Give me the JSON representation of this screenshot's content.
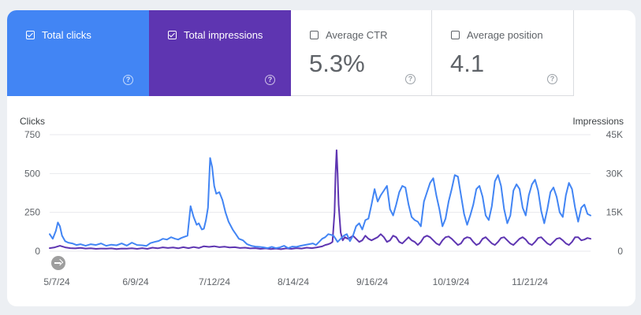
{
  "metrics": [
    {
      "label": "Total clicks",
      "checked": true,
      "color": "#4285f4",
      "value": "",
      "help_icon": "help-icon"
    },
    {
      "label": "Total impressions",
      "checked": true,
      "color": "#5e35b1",
      "value": "",
      "help_icon": "help-icon"
    },
    {
      "label": "Average CTR",
      "checked": false,
      "value": "5.3%",
      "help_icon": "help-icon"
    },
    {
      "label": "Average position",
      "checked": false,
      "value": "4.1",
      "help_icon": "help-icon"
    }
  ],
  "colors": {
    "clicks": "#4285f4",
    "impressions": "#5e35b1",
    "grid": "#e8eaed"
  },
  "chart_data": {
    "type": "line",
    "left_axis_label": "Clicks",
    "right_axis_label": "Impressions",
    "left_ticks": [
      "0",
      "250",
      "500",
      "750"
    ],
    "right_ticks": [
      "0",
      "15K",
      "30K",
      "45K"
    ],
    "ylim_left": [
      0,
      750
    ],
    "ylim_right": [
      0,
      45000
    ],
    "grid": true,
    "x_tick_labels": [
      "5/7/24",
      "6/9/24",
      "7/12/24",
      "8/14/24",
      "9/16/24",
      "10/19/24",
      "11/21/24"
    ],
    "series": [
      {
        "name": "Clicks",
        "axis": "left",
        "color": "#4285f4",
        "points": [
          [
            0,
            110
          ],
          [
            3,
            80
          ],
          [
            6,
            130
          ],
          [
            8,
            185
          ],
          [
            10,
            160
          ],
          [
            12,
            100
          ],
          [
            15,
            65
          ],
          [
            18,
            55
          ],
          [
            22,
            50
          ],
          [
            26,
            40
          ],
          [
            30,
            45
          ],
          [
            35,
            35
          ],
          [
            40,
            45
          ],
          [
            45,
            40
          ],
          [
            50,
            50
          ],
          [
            55,
            35
          ],
          [
            60,
            42
          ],
          [
            65,
            38
          ],
          [
            70,
            50
          ],
          [
            75,
            36
          ],
          [
            80,
            55
          ],
          [
            85,
            40
          ],
          [
            90,
            38
          ],
          [
            94,
            34
          ],
          [
            98,
            52
          ],
          [
            102,
            60
          ],
          [
            106,
            66
          ],
          [
            110,
            80
          ],
          [
            114,
            75
          ],
          [
            118,
            90
          ],
          [
            122,
            80
          ],
          [
            125,
            75
          ],
          [
            128,
            85
          ],
          [
            130,
            90
          ],
          [
            134,
            100
          ],
          [
            137,
            290
          ],
          [
            140,
            220
          ],
          [
            143,
            170
          ],
          [
            145,
            180
          ],
          [
            148,
            140
          ],
          [
            150,
            145
          ],
          [
            152,
            200
          ],
          [
            154,
            280
          ],
          [
            156,
            600
          ],
          [
            158,
            540
          ],
          [
            160,
            420
          ],
          [
            162,
            370
          ],
          [
            165,
            380
          ],
          [
            168,
            330
          ],
          [
            171,
            250
          ],
          [
            174,
            190
          ],
          [
            178,
            140
          ],
          [
            181,
            110
          ],
          [
            184,
            80
          ],
          [
            188,
            70
          ],
          [
            192,
            45
          ],
          [
            196,
            35
          ],
          [
            200,
            30
          ],
          [
            204,
            28
          ],
          [
            208,
            25
          ],
          [
            212,
            20
          ],
          [
            216,
            28
          ],
          [
            220,
            20
          ],
          [
            224,
            25
          ],
          [
            228,
            35
          ],
          [
            232,
            20
          ],
          [
            236,
            30
          ],
          [
            240,
            28
          ],
          [
            244,
            35
          ],
          [
            248,
            40
          ],
          [
            252,
            45
          ],
          [
            256,
            50
          ],
          [
            259,
            40
          ],
          [
            262,
            60
          ],
          [
            265,
            80
          ],
          [
            268,
            90
          ],
          [
            271,
            110
          ],
          [
            274,
            105
          ],
          [
            276,
            100
          ],
          [
            278,
            80
          ],
          [
            280,
            60
          ],
          [
            283,
            80
          ],
          [
            286,
            100
          ],
          [
            289,
            110
          ],
          [
            292,
            65
          ],
          [
            295,
            100
          ],
          [
            298,
            160
          ],
          [
            301,
            180
          ],
          [
            304,
            140
          ],
          [
            307,
            200
          ],
          [
            310,
            210
          ],
          [
            313,
            300
          ],
          [
            316,
            400
          ],
          [
            319,
            320
          ],
          [
            322,
            360
          ],
          [
            325,
            390
          ],
          [
            328,
            420
          ],
          [
            331,
            270
          ],
          [
            334,
            230
          ],
          [
            337,
            300
          ],
          [
            340,
            380
          ],
          [
            343,
            420
          ],
          [
            346,
            410
          ],
          [
            349,
            300
          ],
          [
            352,
            220
          ],
          [
            355,
            200
          ],
          [
            358,
            190
          ],
          [
            361,
            160
          ],
          [
            364,
            320
          ],
          [
            367,
            380
          ],
          [
            370,
            440
          ],
          [
            373,
            470
          ],
          [
            376,
            360
          ],
          [
            379,
            270
          ],
          [
            382,
            160
          ],
          [
            385,
            210
          ],
          [
            388,
            320
          ],
          [
            391,
            400
          ],
          [
            394,
            490
          ],
          [
            397,
            480
          ],
          [
            400,
            360
          ],
          [
            403,
            240
          ],
          [
            406,
            170
          ],
          [
            409,
            230
          ],
          [
            412,
            300
          ],
          [
            415,
            400
          ],
          [
            418,
            420
          ],
          [
            421,
            350
          ],
          [
            424,
            230
          ],
          [
            427,
            200
          ],
          [
            430,
            290
          ],
          [
            433,
            450
          ],
          [
            436,
            490
          ],
          [
            439,
            420
          ],
          [
            442,
            270
          ],
          [
            445,
            180
          ],
          [
            448,
            230
          ],
          [
            451,
            390
          ],
          [
            454,
            430
          ],
          [
            457,
            400
          ],
          [
            460,
            280
          ],
          [
            463,
            230
          ],
          [
            466,
            360
          ],
          [
            469,
            430
          ],
          [
            472,
            460
          ],
          [
            475,
            390
          ],
          [
            478,
            260
          ],
          [
            481,
            180
          ],
          [
            484,
            270
          ],
          [
            487,
            380
          ],
          [
            490,
            410
          ],
          [
            493,
            350
          ],
          [
            496,
            250
          ],
          [
            499,
            220
          ],
          [
            502,
            360
          ],
          [
            505,
            440
          ],
          [
            508,
            400
          ],
          [
            511,
            280
          ],
          [
            514,
            190
          ],
          [
            517,
            280
          ],
          [
            520,
            300
          ],
          [
            523,
            240
          ],
          [
            526,
            230
          ]
        ]
      },
      {
        "name": "Impressions",
        "axis": "right",
        "color": "#5e35b1",
        "points": [
          [
            0,
            1200
          ],
          [
            5,
            1500
          ],
          [
            10,
            2100
          ],
          [
            15,
            1500
          ],
          [
            20,
            1200
          ],
          [
            25,
            1080
          ],
          [
            30,
            1320
          ],
          [
            35,
            1020
          ],
          [
            40,
            1140
          ],
          [
            45,
            900
          ],
          [
            50,
            1020
          ],
          [
            55,
            960
          ],
          [
            60,
            1080
          ],
          [
            65,
            840
          ],
          [
            70,
            1020
          ],
          [
            75,
            960
          ],
          [
            80,
            1140
          ],
          [
            85,
            900
          ],
          [
            90,
            1200
          ],
          [
            95,
            900
          ],
          [
            100,
            1380
          ],
          [
            105,
            1140
          ],
          [
            110,
            1500
          ],
          [
            115,
            1260
          ],
          [
            120,
            1440
          ],
          [
            125,
            1140
          ],
          [
            130,
            1560
          ],
          [
            135,
            1200
          ],
          [
            140,
            1620
          ],
          [
            145,
            1260
          ],
          [
            150,
            1920
          ],
          [
            155,
            1680
          ],
          [
            160,
            1920
          ],
          [
            165,
            1560
          ],
          [
            170,
            1740
          ],
          [
            175,
            1440
          ],
          [
            180,
            1560
          ],
          [
            185,
            1260
          ],
          [
            190,
            1380
          ],
          [
            195,
            1080
          ],
          [
            200,
            1200
          ],
          [
            205,
            900
          ],
          [
            210,
            1080
          ],
          [
            215,
            840
          ],
          [
            220,
            1020
          ],
          [
            225,
            780
          ],
          [
            230,
            1080
          ],
          [
            235,
            900
          ],
          [
            240,
            1200
          ],
          [
            245,
            1020
          ],
          [
            250,
            1380
          ],
          [
            255,
            1200
          ],
          [
            260,
            1500
          ],
          [
            265,
            1860
          ],
          [
            268,
            2400
          ],
          [
            271,
            2700
          ],
          [
            273,
            3000
          ],
          [
            275,
            3600
          ],
          [
            277,
            15000
          ],
          [
            278,
            30000
          ],
          [
            279,
            39000
          ],
          [
            280,
            30000
          ],
          [
            281,
            18000
          ],
          [
            283,
            7200
          ],
          [
            285,
            4200
          ],
          [
            287,
            5400
          ],
          [
            290,
            4800
          ],
          [
            293,
            5400
          ],
          [
            295,
            6000
          ],
          [
            298,
            4800
          ],
          [
            301,
            3600
          ],
          [
            304,
            4200
          ],
          [
            307,
            6000
          ],
          [
            310,
            4800
          ],
          [
            313,
            4200
          ],
          [
            316,
            4800
          ],
          [
            319,
            5400
          ],
          [
            322,
            6600
          ],
          [
            325,
            5400
          ],
          [
            328,
            3600
          ],
          [
            331,
            4200
          ],
          [
            334,
            6000
          ],
          [
            337,
            5400
          ],
          [
            340,
            3600
          ],
          [
            343,
            3000
          ],
          [
            346,
            4200
          ],
          [
            349,
            5400
          ],
          [
            352,
            4200
          ],
          [
            355,
            3600
          ],
          [
            358,
            2400
          ],
          [
            361,
            3600
          ],
          [
            364,
            5400
          ],
          [
            367,
            6000
          ],
          [
            370,
            5400
          ],
          [
            373,
            4200
          ],
          [
            376,
            3000
          ],
          [
            379,
            2400
          ],
          [
            382,
            4200
          ],
          [
            385,
            5400
          ],
          [
            388,
            5700
          ],
          [
            391,
            4800
          ],
          [
            394,
            3600
          ],
          [
            397,
            2400
          ],
          [
            400,
            3000
          ],
          [
            403,
            4800
          ],
          [
            406,
            5400
          ],
          [
            409,
            5100
          ],
          [
            412,
            3600
          ],
          [
            415,
            2400
          ],
          [
            418,
            3000
          ],
          [
            421,
            4800
          ],
          [
            424,
            5400
          ],
          [
            427,
            4200
          ],
          [
            430,
            3000
          ],
          [
            433,
            2400
          ],
          [
            436,
            3600
          ],
          [
            439,
            5100
          ],
          [
            442,
            5400
          ],
          [
            445,
            4200
          ],
          [
            448,
            3000
          ],
          [
            451,
            2400
          ],
          [
            454,
            3600
          ],
          [
            457,
            4800
          ],
          [
            460,
            5400
          ],
          [
            463,
            4500
          ],
          [
            466,
            3000
          ],
          [
            469,
            2400
          ],
          [
            472,
            3600
          ],
          [
            475,
            5100
          ],
          [
            478,
            5400
          ],
          [
            481,
            4200
          ],
          [
            484,
            3000
          ],
          [
            487,
            2400
          ],
          [
            490,
            3600
          ],
          [
            493,
            4800
          ],
          [
            496,
            5100
          ],
          [
            499,
            4200
          ],
          [
            502,
            3000
          ],
          [
            505,
            2400
          ],
          [
            508,
            3600
          ],
          [
            511,
            5400
          ],
          [
            514,
            5400
          ],
          [
            517,
            4200
          ],
          [
            520,
            4500
          ],
          [
            523,
            5100
          ],
          [
            526,
            4800
          ]
        ]
      }
    ]
  }
}
